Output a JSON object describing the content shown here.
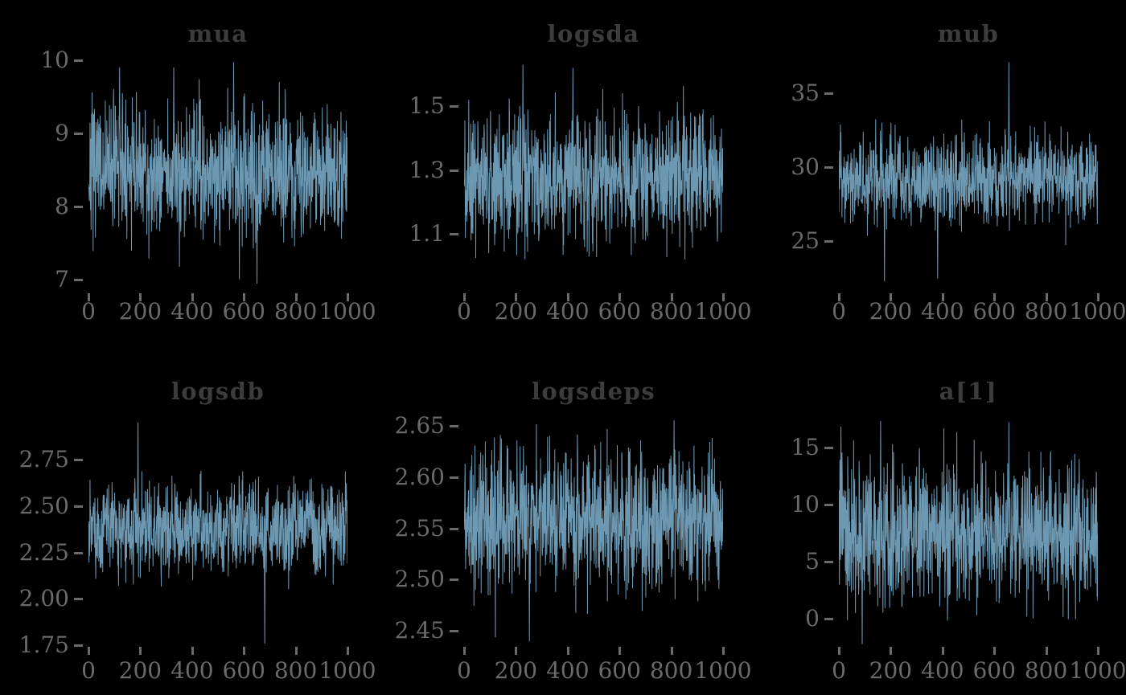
{
  "page": {
    "background": "#000000",
    "description": "Grid of six MCMC trace plots, 2 rows x 3 columns"
  },
  "colors": {
    "background": "#000000",
    "trace": "#6C98B2",
    "tick_label": "#6a6a6a",
    "tick_mark": "#6a6a6a",
    "title": "#3c3c3c"
  },
  "chart_data": [
    {
      "type": "line",
      "title": "mua",
      "xlabel": "",
      "ylabel": "",
      "xlim": [
        0,
        1000
      ],
      "ylim": [
        6.76,
        10.11
      ],
      "n_samples": 1000,
      "x_ticks": [
        0,
        200,
        400,
        600,
        800,
        1000
      ],
      "x_tick_labels": [
        "0",
        "200",
        "400",
        "600",
        "800",
        "1000"
      ],
      "y_ticks": [
        10,
        9,
        8,
        7
      ],
      "y_tick_labels": [
        "10",
        "9",
        "8",
        "7"
      ],
      "series_stats": {
        "mean": 8.5,
        "sd": 0.45,
        "min": 6.95,
        "max": 9.97
      },
      "notable_spikes": [
        {
          "x": 650,
          "v": 6.95
        },
        {
          "x": 560,
          "v": 9.97
        },
        {
          "x": 329,
          "v": 9.9
        },
        {
          "x": 120,
          "v": 9.9
        }
      ],
      "grid": false,
      "legend": "none",
      "seed": 7
    },
    {
      "type": "line",
      "title": "logsda",
      "xlabel": "",
      "ylabel": "",
      "xlim": [
        0,
        1000
      ],
      "ylim": [
        0.9,
        1.67
      ],
      "n_samples": 1000,
      "x_ticks": [
        0,
        200,
        400,
        600,
        800,
        1000
      ],
      "x_tick_labels": [
        "0",
        "200",
        "400",
        "600",
        "800",
        "1000"
      ],
      "y_ticks": [
        1.5,
        1.3,
        1.1
      ],
      "y_tick_labels": [
        "1.5",
        "1.3",
        "1.1"
      ],
      "series_stats": {
        "mean": 1.285,
        "sd": 0.1,
        "min": 1.02,
        "max": 1.63
      },
      "notable_spikes": [
        {
          "x": 227,
          "v": 1.63
        },
        {
          "x": 420,
          "v": 1.62
        },
        {
          "x": 95,
          "v": 1.04
        }
      ],
      "grid": false,
      "legend": "none",
      "seed": 12
    },
    {
      "type": "line",
      "title": "mub",
      "xlabel": "",
      "ylabel": "",
      "xlim": [
        0,
        1000
      ],
      "ylim": [
        21.2,
        37.8
      ],
      "n_samples": 1000,
      "x_ticks": [
        0,
        200,
        400,
        600,
        800,
        1000
      ],
      "x_tick_labels": [
        "0",
        "200",
        "400",
        "600",
        "800",
        "1000"
      ],
      "y_ticks": [
        35,
        30,
        25
      ],
      "y_tick_labels": [
        "35",
        "30",
        "25"
      ],
      "series_stats": {
        "mean": 29.2,
        "sd": 1.4,
        "min": 22.1,
        "max": 37.1
      },
      "notable_spikes": [
        {
          "x": 656,
          "v": 37.1
        },
        {
          "x": 176,
          "v": 22.3
        },
        {
          "x": 381,
          "v": 22.5
        }
      ],
      "grid": false,
      "legend": "none",
      "seed": 23
    },
    {
      "type": "line",
      "title": "logsdb",
      "xlabel": "",
      "ylabel": "",
      "xlim": [
        0,
        1000
      ],
      "ylim": [
        1.72,
        3.02
      ],
      "n_samples": 1000,
      "x_ticks": [
        0,
        200,
        400,
        600,
        800,
        1000
      ],
      "x_tick_labels": [
        "0",
        "200",
        "400",
        "600",
        "800",
        "1000"
      ],
      "y_ticks": [
        2.75,
        2.5,
        2.25,
        2.0,
        1.75
      ],
      "y_tick_labels": [
        "2.75",
        "2.50",
        "2.25",
        "2.00",
        "1.75"
      ],
      "series_stats": {
        "mean": 2.38,
        "sd": 0.12,
        "min": 1.76,
        "max": 2.95
      },
      "notable_spikes": [
        {
          "x": 191,
          "v": 2.95
        },
        {
          "x": 680,
          "v": 1.76
        }
      ],
      "grid": false,
      "legend": "none",
      "seed": 34
    },
    {
      "type": "line",
      "title": "logsdeps",
      "xlabel": "",
      "ylabel": "",
      "xlim": [
        0,
        1000
      ],
      "ylim": [
        2.4305,
        2.6656
      ],
      "n_samples": 1000,
      "x_ticks": [
        0,
        200,
        400,
        600,
        800,
        1000
      ],
      "x_tick_labels": [
        "0",
        "200",
        "400",
        "600",
        "800",
        "1000"
      ],
      "y_ticks": [
        2.65,
        2.6,
        2.55,
        2.5,
        2.45
      ],
      "y_tick_labels": [
        "2.65",
        "2.60",
        "2.55",
        "2.50",
        "2.45"
      ],
      "series_stats": {
        "mean": 2.56,
        "sd": 0.033,
        "min": 2.44,
        "max": 2.655
      },
      "notable_spikes": [
        {
          "x": 252,
          "v": 2.44
        },
        {
          "x": 810,
          "v": 2.655
        },
        {
          "x": 330,
          "v": 2.64
        }
      ],
      "grid": false,
      "legend": "none",
      "seed": 45
    },
    {
      "type": "line",
      "title": "a[1]",
      "xlabel": "",
      "ylabel": "",
      "xlim": [
        0,
        1000
      ],
      "ylim": [
        -2.8,
        18.3
      ],
      "n_samples": 1000,
      "x_ticks": [
        0,
        200,
        400,
        600,
        800,
        1000
      ],
      "x_tick_labels": [
        "0",
        "200",
        "400",
        "600",
        "800",
        "1000"
      ],
      "y_ticks": [
        15,
        10,
        5,
        0
      ],
      "y_tick_labels": [
        "15",
        "10",
        "5",
        "0"
      ],
      "series_stats": {
        "mean": 7.6,
        "sd": 2.9,
        "min": -2.3,
        "max": 17.3
      },
      "notable_spikes": [
        {
          "x": 161,
          "v": 17.3
        },
        {
          "x": 656,
          "v": 17.2
        },
        {
          "x": 8,
          "v": 16.8
        },
        {
          "x": 90,
          "v": -2.2
        }
      ],
      "grid": false,
      "legend": "none",
      "seed": 56
    }
  ]
}
